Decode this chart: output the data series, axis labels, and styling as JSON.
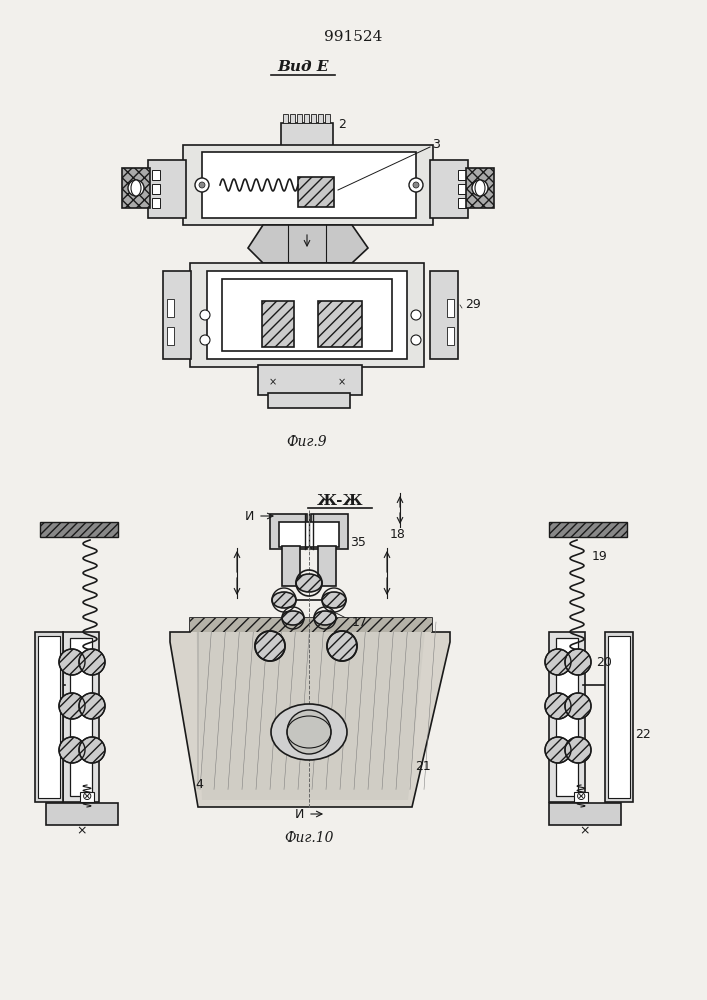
{
  "bg_color": "#f2f0ec",
  "line_color": "#1a1a1a",
  "title_text": "991524",
  "fig9_label": "Фиг.9",
  "fig10_label": "Фиг.10",
  "vid_e_label": "Вид Е",
  "zh_zh_label": "Ж-Ж",
  "label2": "2",
  "label3": "3",
  "label29": "29",
  "label17": "17",
  "label18": "18",
  "label19": "19",
  "label20": "20",
  "label21": "21",
  "label22": "22",
  "label35": "35",
  "label4": "4",
  "label_i": "И",
  "lw": 1.2
}
